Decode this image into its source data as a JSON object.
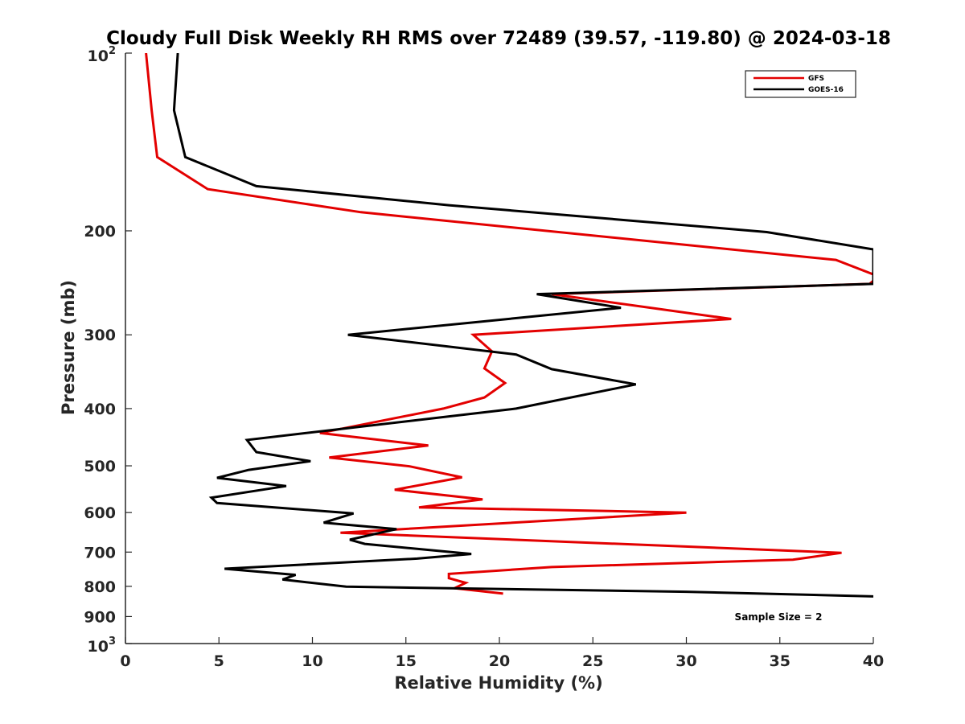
{
  "chart_data": {
    "type": "line",
    "title": "Cloudy Full Disk Weekly RH RMS over 72489 (39.57, -119.80) @ 2024-03-18",
    "xlabel": "Relative Humidity (%)",
    "ylabel": "Pressure (mb)",
    "xlim": [
      0,
      40
    ],
    "ylim": [
      100,
      1000
    ],
    "y_scale": "log",
    "y_reversed": true,
    "x_ticks": [
      0,
      5,
      10,
      15,
      20,
      25,
      30,
      35,
      40
    ],
    "y_ticks": [
      {
        "value": 100,
        "base": "10",
        "exp": "2"
      },
      {
        "value": 200,
        "label": "200"
      },
      {
        "value": 300,
        "label": "300"
      },
      {
        "value": 400,
        "label": "400"
      },
      {
        "value": 500,
        "label": "500"
      },
      {
        "value": 600,
        "label": "600"
      },
      {
        "value": 700,
        "label": "700"
      },
      {
        "value": 800,
        "label": "800"
      },
      {
        "value": 900,
        "label": "900"
      },
      {
        "value": 1000,
        "base": "10",
        "exp": "3"
      }
    ],
    "grid": false,
    "legend_position": "top-right",
    "annotation": "Sample Size = 2",
    "series": [
      {
        "name": "GFS",
        "color": "#e30000",
        "points": [
          [
            1.1,
            100
          ],
          [
            1.4,
            125
          ],
          [
            1.7,
            150
          ],
          [
            4.4,
            170
          ],
          [
            12.6,
            186
          ],
          [
            38.0,
            224
          ],
          [
            40.0,
            237
          ],
          [
            40.0,
            243
          ],
          [
            39.8,
            246
          ],
          [
            22.8,
            256
          ],
          [
            32.4,
            282
          ],
          [
            18.6,
            300
          ],
          [
            19.6,
            320
          ],
          [
            19.2,
            342
          ],
          [
            20.3,
            362
          ],
          [
            19.2,
            383
          ],
          [
            17.0,
            400
          ],
          [
            10.4,
            440
          ],
          [
            16.2,
            462
          ],
          [
            10.9,
            484
          ],
          [
            15.2,
            501
          ],
          [
            18.0,
            523
          ],
          [
            14.4,
            549
          ],
          [
            19.1,
            570
          ],
          [
            15.7,
            588
          ],
          [
            30.0,
            600
          ],
          [
            11.5,
            649
          ],
          [
            38.3,
            702
          ],
          [
            35.7,
            721
          ],
          [
            22.8,
            742
          ],
          [
            17.3,
            762
          ],
          [
            17.3,
            775
          ],
          [
            18.2,
            789
          ],
          [
            17.6,
            806
          ],
          [
            20.2,
            823
          ]
        ]
      },
      {
        "name": "GOES-16",
        "color": "#000000",
        "points": [
          [
            2.8,
            100
          ],
          [
            2.6,
            125
          ],
          [
            3.2,
            150
          ],
          [
            7.0,
            168
          ],
          [
            17.3,
            181
          ],
          [
            34.3,
            201
          ],
          [
            40.0,
            215
          ],
          [
            40.0,
            246
          ],
          [
            22.0,
            256
          ],
          [
            26.5,
            270
          ],
          [
            11.9,
            300
          ],
          [
            20.9,
            324
          ],
          [
            22.8,
            343
          ],
          [
            27.3,
            364
          ],
          [
            20.9,
            400
          ],
          [
            6.5,
            452
          ],
          [
            7.0,
            474
          ],
          [
            9.9,
            491
          ],
          [
            6.6,
            508
          ],
          [
            4.9,
            524
          ],
          [
            8.6,
            541
          ],
          [
            4.6,
            566
          ],
          [
            4.9,
            578
          ],
          [
            12.2,
            602
          ],
          [
            10.6,
            624
          ],
          [
            14.5,
            640
          ],
          [
            12.0,
            667
          ],
          [
            12.8,
            678
          ],
          [
            18.5,
            705
          ],
          [
            15.6,
            718
          ],
          [
            5.3,
            747
          ],
          [
            9.1,
            765
          ],
          [
            8.4,
            779
          ],
          [
            11.8,
            801
          ],
          [
            30.0,
            817
          ],
          [
            40.0,
            832
          ]
        ]
      }
    ]
  }
}
